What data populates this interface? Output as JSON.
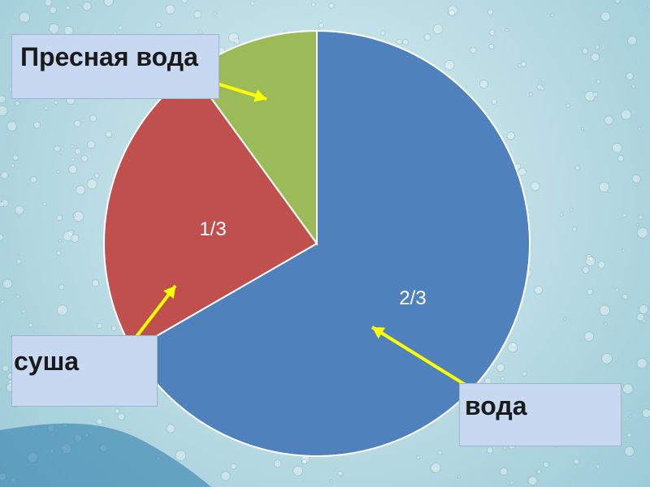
{
  "chart_data": {
    "type": "pie",
    "slices": [
      {
        "label": "вода",
        "value": 0.6667,
        "value_label": "2/3",
        "color": "#4f81bd"
      },
      {
        "label": "суша",
        "value": 0.2333,
        "value_label": "1/3",
        "color": "#c0504d"
      },
      {
        "label": "Пресная вода",
        "value": 0.1,
        "value_label": "",
        "color": "#9bbb59"
      }
    ],
    "start_angle": "top, clockwise"
  },
  "callouts": {
    "fresh_water": "Пресная вода",
    "land": "суша",
    "water": "вода"
  },
  "colors": {
    "callout_bg": "#c6d9f1",
    "arrow": "#ffff00",
    "label_text": "#ffffff"
  }
}
